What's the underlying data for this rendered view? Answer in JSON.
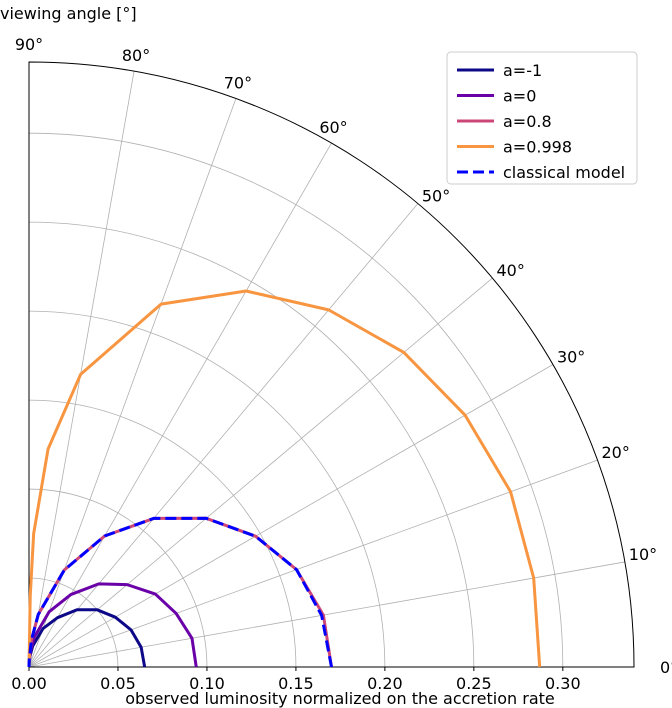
{
  "chart_data": {
    "type": "line",
    "subtype": "polar-quarter",
    "title": "",
    "radial_label": "observed luminosity normalized on the accretion rate",
    "angular_label": "viewing angle [$^{\\circ}$]",
    "angular_label_display": "viewing angle [°]",
    "r_lim": [
      0,
      0.34
    ],
    "theta_lim_deg": [
      0,
      90
    ],
    "r_ticks": [
      0.0,
      0.05,
      0.1,
      0.15,
      0.2,
      0.25,
      0.3
    ],
    "r_tick_labels": [
      "0.00",
      "0.05",
      "0.10",
      "0.15",
      "0.20",
      "0.25",
      "0.30"
    ],
    "theta_ticks_deg": [
      0,
      10,
      20,
      30,
      40,
      50,
      60,
      70,
      80,
      90
    ],
    "theta_tick_labels": [
      "0°",
      "10°",
      "20°",
      "30°",
      "40°",
      "50°",
      "60°",
      "70°",
      "80°",
      "90°"
    ],
    "grid": true,
    "legend_position": "top-right",
    "series": [
      {
        "name": "a=-1",
        "color": "#0d0887",
        "dash": "solid",
        "theta_deg": [
          0,
          10,
          20,
          30,
          40,
          50,
          60,
          70,
          80,
          85,
          89,
          90
        ],
        "r": [
          0.065,
          0.064,
          0.061,
          0.056,
          0.05,
          0.042,
          0.032,
          0.023,
          0.012,
          0.006,
          0.0012,
          0.0
        ]
      },
      {
        "name": "a=0",
        "color": "#6a00a8",
        "dash": "solid",
        "theta_deg": [
          0,
          10,
          20,
          30,
          40,
          50,
          60,
          70,
          80,
          85,
          89,
          90
        ],
        "r": [
          0.094,
          0.093,
          0.088,
          0.082,
          0.072,
          0.061,
          0.047,
          0.033,
          0.017,
          0.009,
          0.0018,
          0.0
        ]
      },
      {
        "name": "a=0.8",
        "color": "#cc4778",
        "dash": "solid",
        "theta_deg": [
          0,
          10,
          20,
          30,
          40,
          50,
          60,
          70,
          80,
          85,
          89,
          90
        ],
        "r": [
          0.17,
          0.168,
          0.16,
          0.147,
          0.13,
          0.109,
          0.085,
          0.058,
          0.03,
          0.015,
          0.003,
          0.0
        ]
      },
      {
        "name": "a=0.998",
        "color": "#f89540",
        "dash": "solid",
        "theta_deg": [
          0,
          10,
          20,
          30,
          40,
          50,
          60,
          70,
          80,
          85,
          88,
          89,
          90
        ],
        "r": [
          0.287,
          0.288,
          0.288,
          0.283,
          0.275,
          0.262,
          0.244,
          0.217,
          0.167,
          0.123,
          0.075,
          0.04,
          0.0
        ]
      },
      {
        "name": "classical model",
        "color": "#0000ff",
        "dash": "dashed",
        "theta_deg": [
          0,
          10,
          20,
          30,
          40,
          50,
          60,
          70,
          80,
          85,
          89,
          90
        ],
        "r": [
          0.17,
          0.167,
          0.16,
          0.147,
          0.13,
          0.109,
          0.085,
          0.058,
          0.03,
          0.015,
          0.003,
          0.0
        ]
      }
    ]
  }
}
